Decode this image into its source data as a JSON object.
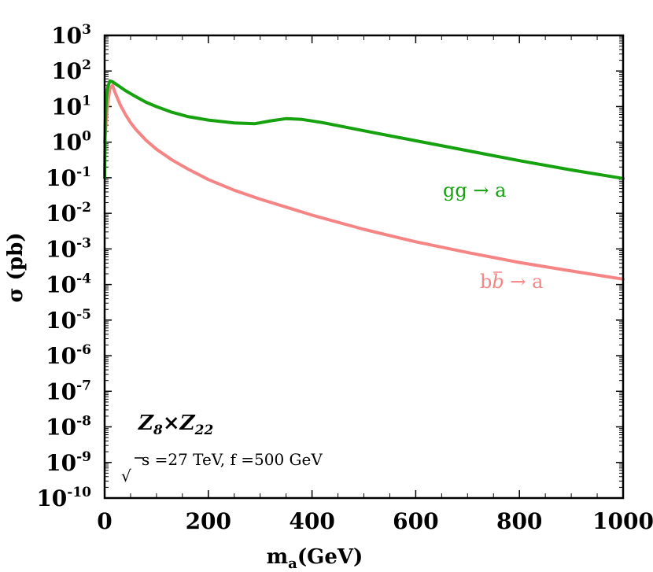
{
  "chart_data": {
    "type": "line",
    "title": "",
    "xlabel": "m",
    "xlabel_sub": "a",
    "xlabel_unit": "(GeV)",
    "ylabel": "σ (pb)",
    "xlim": [
      0,
      1000
    ],
    "ylim_log10": [
      -10,
      3
    ],
    "x_ticks": [
      "0",
      "200",
      "400",
      "600",
      "800",
      "1000"
    ],
    "x_tick_values": [
      0,
      200,
      400,
      600,
      800,
      1000
    ],
    "y_tick_exponents": [
      "3",
      "2",
      "1",
      "0",
      "-1",
      "-2",
      "-3",
      "-4",
      "-5",
      "-6",
      "-7",
      "-8",
      "-9",
      "-10"
    ],
    "y_tick_base": "10",
    "grid": false,
    "series": [
      {
        "name": "gg → a",
        "color": "#16a10f",
        "x": [
          0,
          1,
          3,
          6,
          10,
          15,
          25,
          40,
          60,
          80,
          100,
          130,
          160,
          200,
          250,
          290,
          320,
          350,
          380,
          420,
          500,
          600,
          700,
          800,
          900,
          1000
        ],
        "log10_y": [
          -1.0,
          0.5,
          1.2,
          1.55,
          1.72,
          1.7,
          1.6,
          1.45,
          1.28,
          1.12,
          1.0,
          0.84,
          0.72,
          0.62,
          0.54,
          0.52,
          0.6,
          0.66,
          0.64,
          0.55,
          0.32,
          0.04,
          -0.24,
          -0.52,
          -0.78,
          -1.02
        ]
      },
      {
        "name": "bb̄ → a",
        "color": "#f58585",
        "x": [
          0,
          3,
          6,
          10,
          15,
          20,
          30,
          40,
          50,
          60,
          80,
          100,
          130,
          160,
          200,
          250,
          300,
          400,
          500,
          600,
          700,
          800,
          900,
          1000
        ],
        "log10_y": [
          0.0,
          0.6,
          1.1,
          1.5,
          1.6,
          1.4,
          1.05,
          0.78,
          0.55,
          0.36,
          0.05,
          -0.2,
          -0.5,
          -0.75,
          -1.05,
          -1.35,
          -1.6,
          -2.05,
          -2.45,
          -2.8,
          -3.1,
          -3.38,
          -3.62,
          -3.85
        ]
      }
    ],
    "annotations": {
      "gg_label_main": "gg",
      "gg_label_arrow": " → a",
      "bb_label_b": "b",
      "bb_label_bbar": "b",
      "bb_label_arrow": " → a",
      "model_part1": "Z",
      "model_sub1": "8",
      "model_times": "×",
      "model_part2": "Z",
      "model_sub2": "22",
      "root_symbol": "√",
      "energy_text": "s =27 TeV, f =500 GeV"
    }
  }
}
